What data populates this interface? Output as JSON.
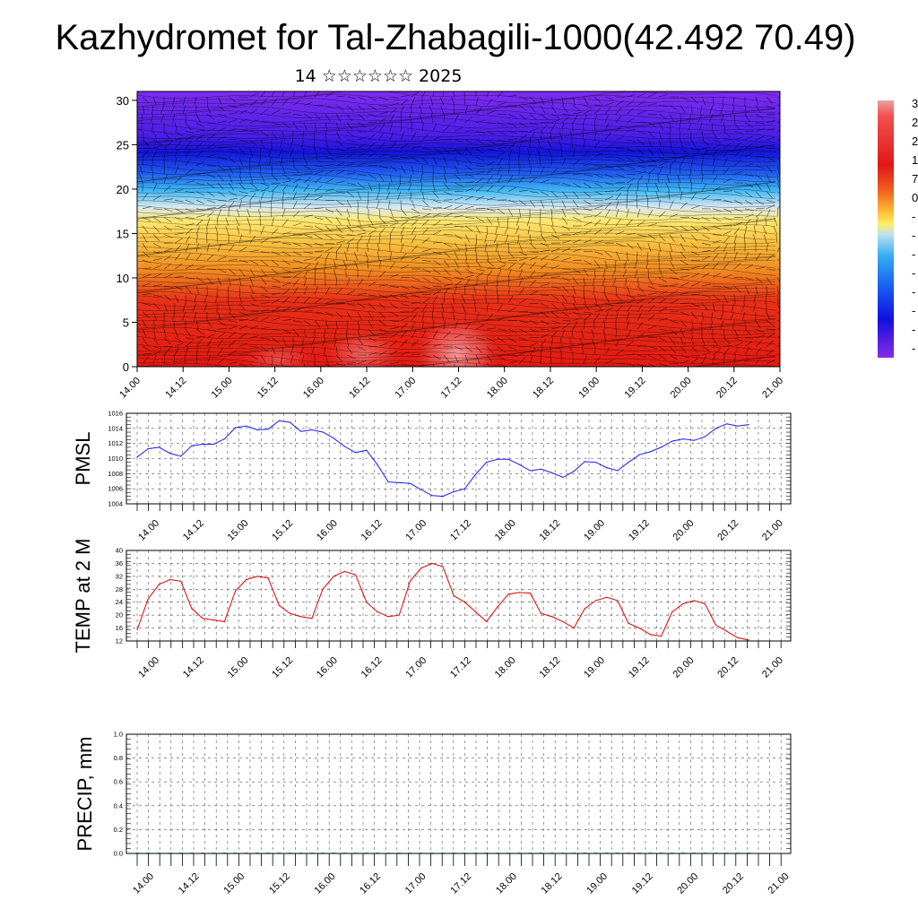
{
  "title": "Kazhydromet for Tal-Zhabagili-1000(42.492 70.49)",
  "subtitle": "14 ☆☆☆☆☆☆ 2025",
  "x_tick_labels": [
    "14.00",
    "14.12",
    "15.00",
    "15.12",
    "16.00",
    "16.12",
    "17.00",
    "17.12",
    "18.00",
    "18.12",
    "19.00",
    "19.12",
    "20.00",
    "20.12",
    "21.00"
  ],
  "chart_data": [
    {
      "name": "vertical-cross-section",
      "type": "heatmap",
      "y_ticks": [
        "0",
        "5",
        "10",
        "15",
        "20",
        "25",
        "30"
      ],
      "ylim": [
        0,
        31
      ],
      "colorbar_labels": [
        "3",
        "2",
        "2",
        "1",
        "7",
        "0",
        "-",
        "-",
        "-",
        "-",
        "-",
        "-",
        "-",
        "-"
      ],
      "colors": {
        "top": "#8a2be2",
        "blue": "#1e1ee6",
        "cyan": "#3ab4f0",
        "yellow": "#ffe86a",
        "orange": "#f5a623",
        "red": "#e8201a",
        "hot": "#f27878"
      }
    },
    {
      "name": "pmsl",
      "type": "line",
      "ylabel": "PMSL",
      "y_ticks": [
        "1004",
        "1006",
        "1008",
        "1010",
        "1012",
        "1014",
        "1016"
      ],
      "ylim": [
        1004,
        1016
      ],
      "color": "#1a1aff",
      "values": [
        1010.2,
        1011.3,
        1011.5,
        1010.7,
        1010.3,
        1011.7,
        1011.9,
        1011.9,
        1012.6,
        1014.1,
        1014.3,
        1013.8,
        1013.9,
        1015.0,
        1014.8,
        1013.6,
        1013.8,
        1013.5,
        1012.7,
        1011.6,
        1010.8,
        1011.1,
        1009.2,
        1006.9,
        1006.8,
        1006.7,
        1005.9,
        1005.1,
        1005.0,
        1005.6,
        1006.0,
        1007.9,
        1009.5,
        1009.9,
        1009.9,
        1009.2,
        1008.4,
        1008.6,
        1008.1,
        1007.5,
        1008.3,
        1009.6,
        1009.5,
        1008.8,
        1008.4,
        1009.5,
        1010.5,
        1010.9,
        1011.5,
        1012.3,
        1012.6,
        1012.4,
        1012.9,
        1014.0,
        1014.6,
        1014.3,
        1014.5
      ]
    },
    {
      "name": "temp-2m",
      "type": "line",
      "ylabel": "TEMP at 2 M",
      "y_ticks": [
        "12",
        "16",
        "20",
        "24",
        "28",
        "32",
        "36",
        "40"
      ],
      "ylim": [
        12,
        40
      ],
      "color": "#e00000",
      "values": [
        15.5,
        25.0,
        29.5,
        31.0,
        30.5,
        22.0,
        19.0,
        18.5,
        18.0,
        27.5,
        31.0,
        32.0,
        31.5,
        23.0,
        20.5,
        19.5,
        19.0,
        28.0,
        32.0,
        33.5,
        32.5,
        24.0,
        21.0,
        19.5,
        20.0,
        30.5,
        34.5,
        36.0,
        35.0,
        26.0,
        24.0,
        21.0,
        18.0,
        22.5,
        26.5,
        27.0,
        26.8,
        20.5,
        19.5,
        18.0,
        16.0,
        22.0,
        24.5,
        25.5,
        24.5,
        17.5,
        16.0,
        14.0,
        13.5,
        21.0,
        23.5,
        24.5,
        23.5,
        17.0,
        15.0,
        13.0,
        12.3
      ]
    },
    {
      "name": "precip",
      "type": "bar",
      "ylabel": "PRECIP, mm",
      "y_ticks": [
        "0.0",
        "0.2",
        "0.4",
        "0.6",
        "0.8",
        "1.0"
      ],
      "ylim": [
        0,
        1
      ],
      "color": "#007a30",
      "values": [
        0,
        0,
        0,
        0,
        0,
        0,
        0,
        0,
        0,
        0,
        0,
        0,
        0,
        0,
        0,
        0,
        0,
        0,
        0,
        0,
        0,
        0,
        0,
        0,
        0,
        0,
        0,
        0,
        0,
        0,
        0,
        0,
        0,
        0,
        0,
        0,
        0,
        0,
        0,
        0,
        0,
        0,
        0,
        0,
        0,
        0,
        0,
        0,
        0,
        0,
        0,
        0,
        0,
        0,
        0,
        0,
        0
      ]
    }
  ]
}
